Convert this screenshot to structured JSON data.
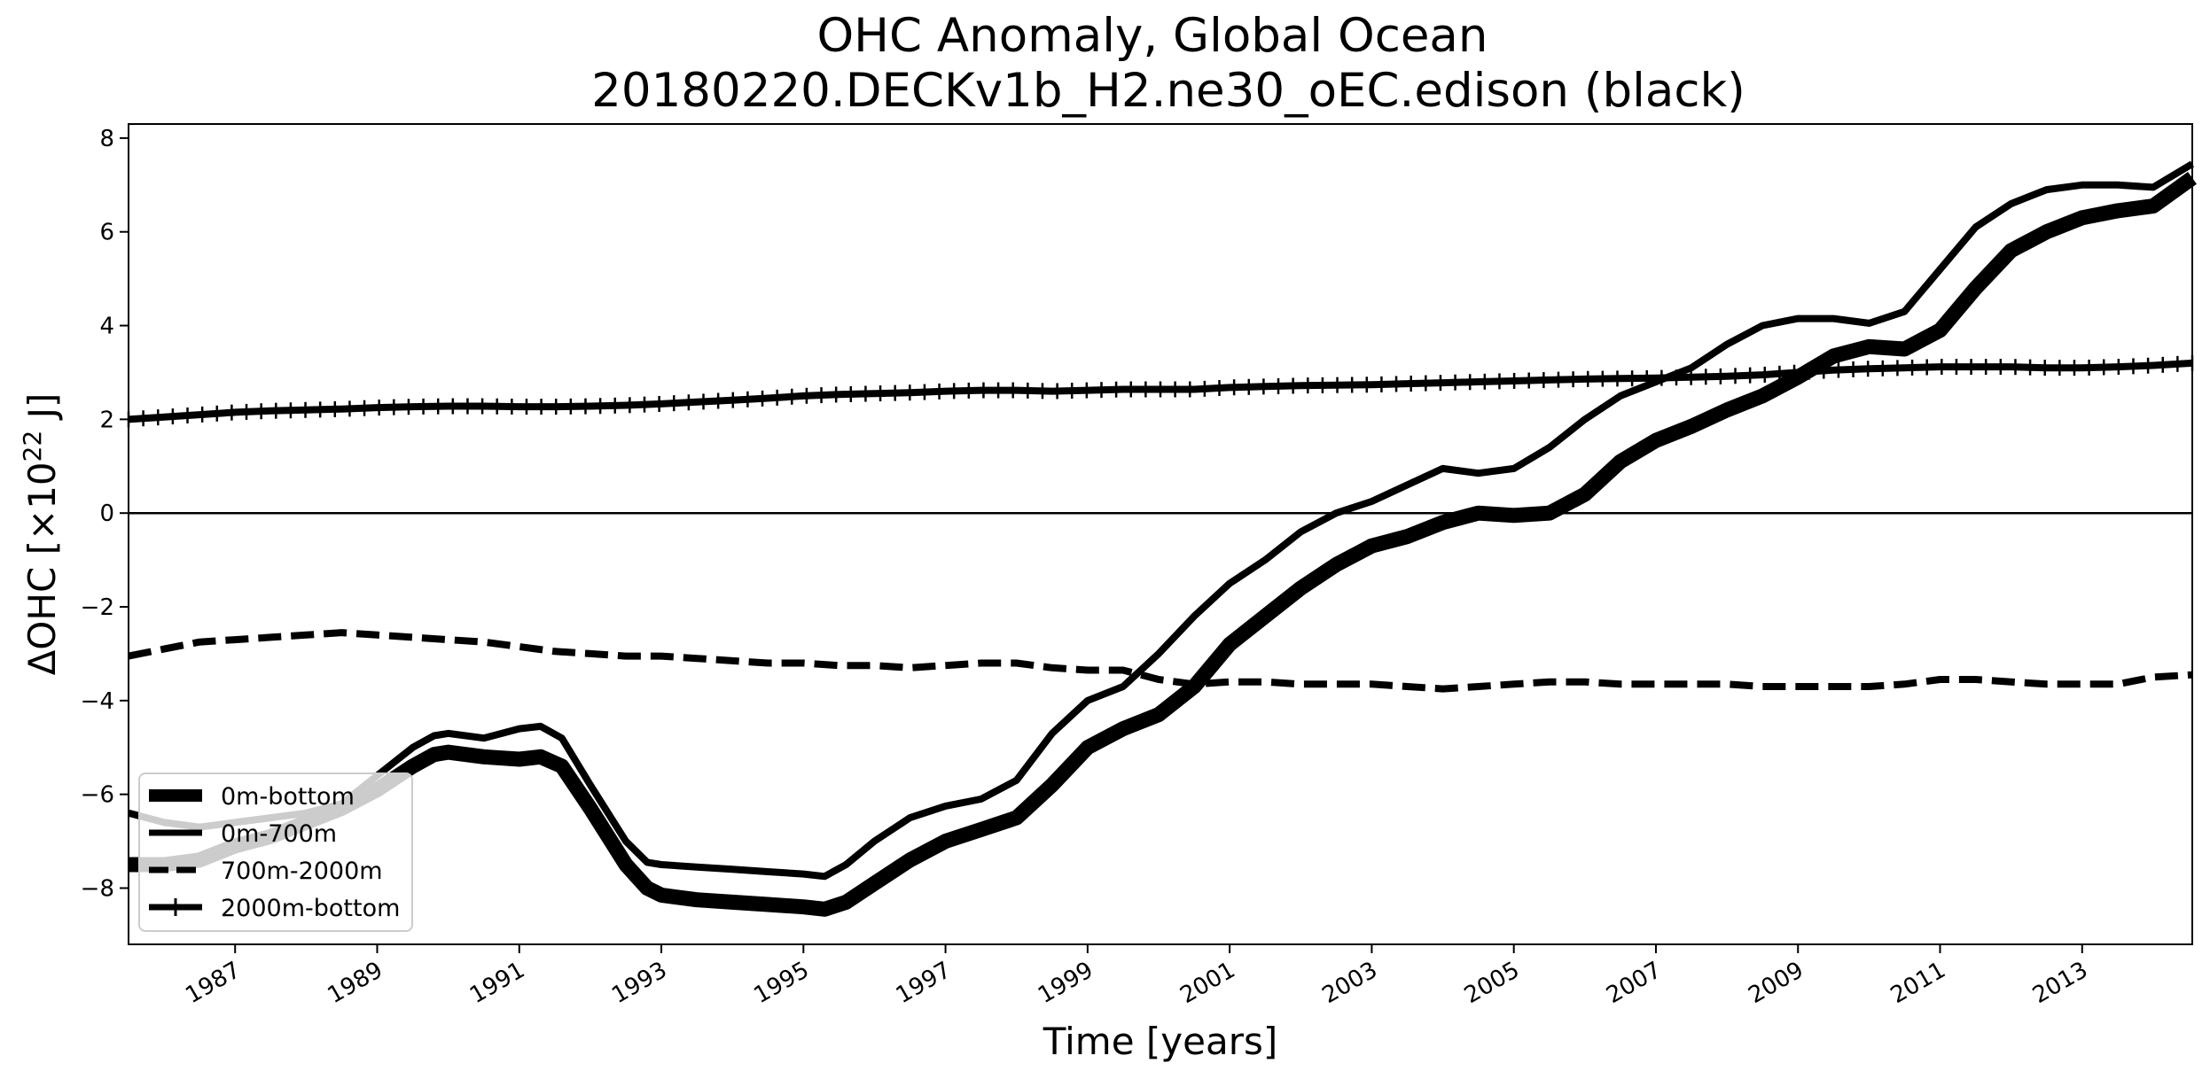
{
  "chart_data": {
    "type": "line",
    "title_line1": "OHC Anomaly, Global Ocean",
    "title_line2": "20180220.DECKv1b_H2.ne30_oEC.edison (black)",
    "xlabel": "Time [years]",
    "ylabel": "ΔOHC [×10",
    "ylabel_sup": "22",
    "ylabel_unit": " J]",
    "xlim": [
      1985.5,
      2014.55
    ],
    "ylim": [
      -9.2,
      8.3
    ],
    "xticks": [
      "1987",
      "1989",
      "1991",
      "1993",
      "1995",
      "1997",
      "1999",
      "2001",
      "2003",
      "2005",
      "2007",
      "2009",
      "2011",
      "2013"
    ],
    "yticks": [
      "−8",
      "−6",
      "−4",
      "−2",
      "0",
      "2",
      "4",
      "6",
      "8"
    ],
    "zero_line": true,
    "legend_position": "lower-left",
    "series": [
      {
        "name": "0m-bottom",
        "style": "thick-solid",
        "x": [
          1985.5,
          1986.0,
          1986.5,
          1987.0,
          1987.5,
          1988.0,
          1988.5,
          1989.0,
          1989.5,
          1989.8,
          1990.0,
          1990.5,
          1991.0,
          1991.3,
          1991.6,
          1992.0,
          1992.5,
          1992.8,
          1993.0,
          1993.5,
          1994.0,
          1994.5,
          1995.0,
          1995.3,
          1995.6,
          1996.0,
          1996.5,
          1997.0,
          1997.5,
          1998.0,
          1998.5,
          1999.0,
          1999.5,
          2000.0,
          2000.5,
          2001.0,
          2001.5,
          2002.0,
          2002.5,
          2003.0,
          2003.5,
          2004.0,
          2004.5,
          2005.0,
          2005.5,
          2006.0,
          2006.5,
          2007.0,
          2007.5,
          2008.0,
          2008.5,
          2009.0,
          2009.5,
          2010.0,
          2010.5,
          2011.0,
          2011.5,
          2012.0,
          2012.5,
          2013.0,
          2013.5,
          2014.0,
          2014.55
        ],
        "values": [
          -7.5,
          -7.5,
          -7.4,
          -7.1,
          -6.9,
          -6.6,
          -6.3,
          -5.9,
          -5.4,
          -5.15,
          -5.1,
          -5.2,
          -5.25,
          -5.2,
          -5.4,
          -6.3,
          -7.5,
          -8.0,
          -8.15,
          -8.25,
          -8.3,
          -8.35,
          -8.4,
          -8.45,
          -8.3,
          -7.9,
          -7.4,
          -7.0,
          -6.75,
          -6.5,
          -5.8,
          -5.0,
          -4.6,
          -4.3,
          -3.7,
          -2.8,
          -2.2,
          -1.6,
          -1.1,
          -0.7,
          -0.5,
          -0.2,
          0.0,
          -0.05,
          0.0,
          0.4,
          1.1,
          1.55,
          1.85,
          2.2,
          2.5,
          2.9,
          3.35,
          3.55,
          3.5,
          3.9,
          4.8,
          5.6,
          6.0,
          6.3,
          6.45,
          6.55,
          7.15
        ]
      },
      {
        "name": "0m-700m",
        "style": "solid",
        "x": [
          1985.5,
          1986.0,
          1986.5,
          1987.0,
          1987.5,
          1988.0,
          1988.5,
          1989.0,
          1989.5,
          1989.8,
          1990.0,
          1990.5,
          1991.0,
          1991.3,
          1991.6,
          1992.0,
          1992.5,
          1992.8,
          1993.0,
          1993.5,
          1994.0,
          1994.5,
          1995.0,
          1995.3,
          1995.6,
          1996.0,
          1996.5,
          1997.0,
          1997.5,
          1998.0,
          1998.5,
          1999.0,
          1999.5,
          2000.0,
          2000.5,
          2001.0,
          2001.5,
          2002.0,
          2002.5,
          2003.0,
          2003.5,
          2004.0,
          2004.5,
          2005.0,
          2005.5,
          2006.0,
          2006.5,
          2007.0,
          2007.5,
          2008.0,
          2008.5,
          2009.0,
          2009.5,
          2010.0,
          2010.5,
          2011.0,
          2011.5,
          2012.0,
          2012.5,
          2013.0,
          2013.5,
          2014.0,
          2014.55
        ],
        "values": [
          -6.4,
          -6.6,
          -6.7,
          -6.6,
          -6.5,
          -6.4,
          -6.2,
          -5.6,
          -5.0,
          -4.75,
          -4.7,
          -4.8,
          -4.6,
          -4.55,
          -4.8,
          -5.8,
          -7.0,
          -7.45,
          -7.5,
          -7.55,
          -7.6,
          -7.65,
          -7.7,
          -7.75,
          -7.5,
          -7.0,
          -6.5,
          -6.25,
          -6.1,
          -5.7,
          -4.7,
          -4.0,
          -3.7,
          -3.0,
          -2.2,
          -1.5,
          -1.0,
          -0.4,
          0.0,
          0.25,
          0.6,
          0.95,
          0.85,
          0.95,
          1.4,
          2.0,
          2.5,
          2.8,
          3.1,
          3.6,
          4.0,
          4.15,
          4.15,
          4.05,
          4.3,
          5.2,
          6.1,
          6.6,
          6.9,
          7.0,
          7.0,
          6.95,
          7.45
        ]
      },
      {
        "name": "700m-2000m",
        "style": "dashed",
        "x": [
          1985.5,
          1986.0,
          1986.5,
          1987.0,
          1987.5,
          1988.0,
          1988.5,
          1989.0,
          1989.5,
          1990.0,
          1990.5,
          1991.0,
          1991.5,
          1992.0,
          1992.5,
          1993.0,
          1993.5,
          1994.0,
          1994.5,
          1995.0,
          1995.5,
          1996.0,
          1996.5,
          1997.0,
          1997.5,
          1998.0,
          1998.5,
          1999.0,
          1999.5,
          2000.0,
          2000.5,
          2001.0,
          2001.5,
          2002.0,
          2002.5,
          2003.0,
          2003.5,
          2004.0,
          2004.5,
          2005.0,
          2005.5,
          2006.0,
          2006.5,
          2007.0,
          2007.5,
          2008.0,
          2008.5,
          2009.0,
          2009.5,
          2010.0,
          2010.5,
          2011.0,
          2011.5,
          2012.0,
          2012.5,
          2013.0,
          2013.5,
          2014.0,
          2014.55
        ],
        "values": [
          -3.05,
          -2.9,
          -2.75,
          -2.7,
          -2.65,
          -2.6,
          -2.55,
          -2.6,
          -2.65,
          -2.7,
          -2.75,
          -2.85,
          -2.95,
          -3.0,
          -3.05,
          -3.05,
          -3.1,
          -3.15,
          -3.2,
          -3.2,
          -3.25,
          -3.25,
          -3.3,
          -3.25,
          -3.2,
          -3.2,
          -3.3,
          -3.35,
          -3.35,
          -3.55,
          -3.65,
          -3.6,
          -3.6,
          -3.65,
          -3.65,
          -3.65,
          -3.7,
          -3.75,
          -3.7,
          -3.65,
          -3.6,
          -3.6,
          -3.65,
          -3.65,
          -3.65,
          -3.65,
          -3.7,
          -3.7,
          -3.7,
          -3.7,
          -3.65,
          -3.55,
          -3.55,
          -3.6,
          -3.65,
          -3.65,
          -3.65,
          -3.5,
          -3.45
        ]
      },
      {
        "name": "2000m-bottom",
        "style": "plus-markers",
        "x": [
          1985.5,
          1986.0,
          1986.5,
          1987.0,
          1987.5,
          1988.0,
          1988.5,
          1989.0,
          1989.5,
          1990.0,
          1990.5,
          1991.0,
          1991.5,
          1992.0,
          1992.5,
          1993.0,
          1993.5,
          1994.0,
          1994.5,
          1995.0,
          1995.5,
          1996.0,
          1996.5,
          1997.0,
          1997.5,
          1998.0,
          1998.5,
          1999.0,
          1999.5,
          2000.0,
          2000.5,
          2001.0,
          2001.5,
          2002.0,
          2002.5,
          2003.0,
          2003.5,
          2004.0,
          2004.5,
          2005.0,
          2005.5,
          2006.0,
          2006.5,
          2007.0,
          2007.5,
          2008.0,
          2008.5,
          2009.0,
          2009.5,
          2010.0,
          2010.5,
          2011.0,
          2011.5,
          2012.0,
          2012.5,
          2013.0,
          2013.5,
          2014.0,
          2014.55
        ],
        "values": [
          2.0,
          2.05,
          2.1,
          2.15,
          2.18,
          2.2,
          2.22,
          2.25,
          2.27,
          2.28,
          2.28,
          2.27,
          2.27,
          2.28,
          2.3,
          2.33,
          2.37,
          2.41,
          2.45,
          2.5,
          2.53,
          2.55,
          2.57,
          2.6,
          2.62,
          2.62,
          2.6,
          2.62,
          2.64,
          2.64,
          2.64,
          2.68,
          2.7,
          2.72,
          2.73,
          2.74,
          2.76,
          2.78,
          2.8,
          2.82,
          2.84,
          2.86,
          2.87,
          2.88,
          2.9,
          2.92,
          2.95,
          3.0,
          3.05,
          3.08,
          3.1,
          3.12,
          3.12,
          3.12,
          3.1,
          3.1,
          3.12,
          3.15,
          3.2
        ]
      }
    ]
  }
}
